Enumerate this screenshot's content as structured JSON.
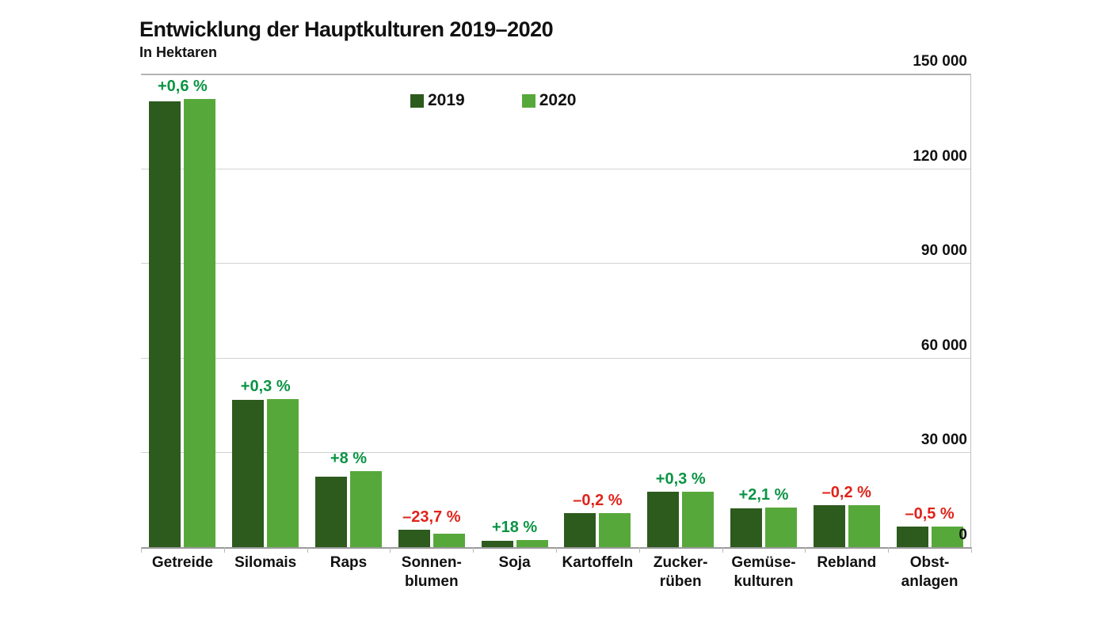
{
  "title": "Entwicklung der Hauptkulturen 2019–2020",
  "subtitle": "In Hektaren",
  "colors": {
    "series_2019": "#2d5a1d",
    "series_2020": "#57a83b",
    "change_positive": "#0b9444",
    "change_negative": "#e0231a",
    "gridline": "#d2d2d2",
    "text": "#111111",
    "background": "#ffffff"
  },
  "chart_data": {
    "type": "bar",
    "title": "Entwicklung der Hauptkulturen 2019–2020",
    "ylabel": "Hektaren",
    "ylim": [
      0,
      150000
    ],
    "grid": true,
    "legend_position": "top-center",
    "y_ticks": [
      "150 000",
      "120 000",
      "90 000",
      "60 000",
      "30 000",
      "0"
    ],
    "categories": [
      "Getreide",
      "Silomais",
      "Raps",
      "Sonnenblumen",
      "Soja",
      "Kartoffeln",
      "Zuckerrüben",
      "Gemüsekulturen",
      "Rebland",
      "Obstanlagen"
    ],
    "category_label_lines": [
      "Getreide",
      "Silomais",
      "Raps",
      "Sonnen-\nblumen",
      "Soja",
      "Kartoffeln",
      "Zucker-\nrüben",
      "Gemüse-\nkulturen",
      "Rebland",
      "Obst-\nanlagen"
    ],
    "series": [
      {
        "name": "2019",
        "color": "#2d5a1d",
        "values": [
          141300,
          46700,
          22300,
          5500,
          1900,
          10900,
          17500,
          12300,
          13400,
          6600
        ]
      },
      {
        "name": "2020",
        "color": "#57a83b",
        "values": [
          142100,
          46850,
          24100,
          4200,
          2250,
          10880,
          17550,
          12560,
          13370,
          6570
        ]
      }
    ],
    "change_labels": [
      "+0,6 %",
      "+0,3 %",
      "+8 %",
      "–23,7 %",
      "+18 %",
      "–0,2 %",
      "+0,3 %",
      "+2,1 %",
      "–0,2 %",
      "–0,5 %"
    ],
    "change_directions": [
      "up",
      "up",
      "up",
      "down",
      "up",
      "down",
      "up",
      "up",
      "down",
      "down"
    ]
  }
}
